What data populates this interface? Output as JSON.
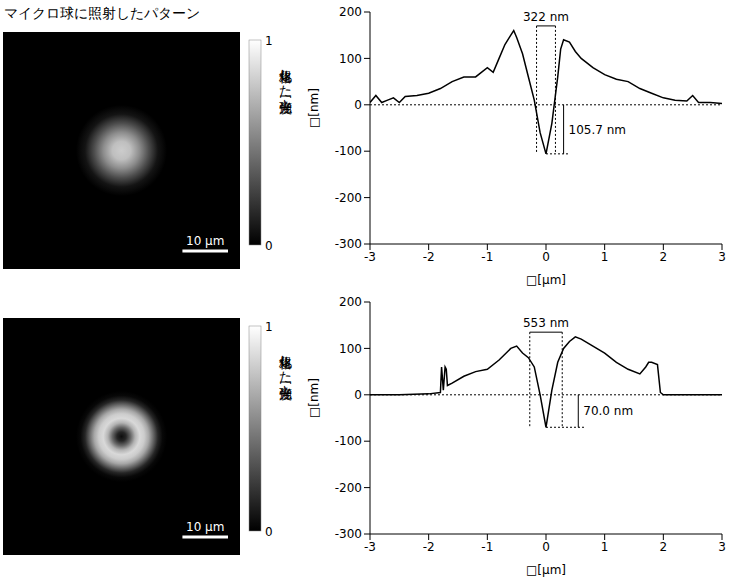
{
  "title": "マイクロ球に照射したパターン",
  "images": [
    {
      "field_um": 52,
      "scale_bar": {
        "length_um": 10,
        "label": "10 μm"
      },
      "radial_intensity": {
        "r_um": [
          0,
          2,
          4,
          6,
          8,
          10
        ],
        "values": [
          0.8,
          0.75,
          0.55,
          0.3,
          0.08,
          0
        ]
      },
      "colorbar": {
        "range": [
          0,
          1
        ],
        "ticks": [
          0,
          1
        ],
        "label": "規格化した光強度 [-]"
      }
    },
    {
      "field_um": 52,
      "scale_bar": {
        "length_um": 10,
        "label": "10 μm"
      },
      "radial_intensity": {
        "r_um": [
          0,
          1,
          2,
          3,
          4,
          5,
          6,
          7,
          8,
          9,
          10
        ],
        "values": [
          0.05,
          0.15,
          0.4,
          0.7,
          0.85,
          0.8,
          0.65,
          0.4,
          0.15,
          0.03,
          0
        ]
      },
      "colorbar": {
        "range": [
          0,
          1
        ],
        "ticks": [
          0,
          1
        ],
        "label": "規格化した光強度 [-]"
      }
    }
  ],
  "chart_data": [
    {
      "type": "line",
      "xlabel": "□[μm]",
      "ylabel": "□[nm]",
      "color": "#000000",
      "x": [
        -3,
        -2.9,
        -2.8,
        -2.7,
        -2.6,
        -2.5,
        -2.4,
        -2.2,
        -2,
        -1.8,
        -1.6,
        -1.4,
        -1.2,
        -1.0,
        -0.9,
        -0.8,
        -0.7,
        -0.6,
        -0.55,
        -0.5,
        -0.4,
        -0.3,
        -0.2,
        -0.1,
        0,
        0.1,
        0.2,
        0.25,
        0.3,
        0.4,
        0.5,
        0.6,
        0.8,
        1.0,
        1.2,
        1.4,
        1.6,
        1.8,
        2.0,
        2.2,
        2.4,
        2.5,
        2.6,
        2.8,
        3.0
      ],
      "values": [
        5,
        20,
        5,
        10,
        15,
        5,
        18,
        20,
        25,
        35,
        50,
        60,
        60,
        80,
        70,
        100,
        130,
        150,
        160,
        145,
        110,
        60,
        10,
        -60,
        -105.7,
        -40,
        60,
        120,
        140,
        135,
        115,
        100,
        80,
        65,
        55,
        50,
        35,
        25,
        15,
        10,
        8,
        20,
        5,
        5,
        3
      ],
      "xlim": [
        -3,
        3
      ],
      "xticks": [
        -3,
        -2,
        -1,
        0,
        1,
        2,
        3
      ],
      "ylim": [
        -300,
        200
      ],
      "yticks": [
        -300,
        -200,
        -100,
        0,
        100,
        200
      ],
      "hlines": [
        0
      ],
      "annotations": [
        {
          "text": "322 nm",
          "x": [
            -0.161,
            0.161
          ],
          "y": 170
        },
        {
          "text": "105.7 nm",
          "x": 0.3,
          "y": [
            -105.7,
            0
          ]
        }
      ]
    },
    {
      "type": "line",
      "xlabel": "□[μm]",
      "ylabel": "□[nm]",
      "color": "#000000",
      "x": [
        -3,
        -2.5,
        -2,
        -1.8,
        -1.78,
        -1.75,
        -1.72,
        -1.7,
        -1.68,
        -1.6,
        -1.4,
        -1.2,
        -1.0,
        -0.8,
        -0.6,
        -0.5,
        -0.4,
        -0.3,
        -0.2,
        -0.1,
        0,
        0.1,
        0.2,
        0.3,
        0.4,
        0.5,
        0.6,
        0.8,
        1.0,
        1.2,
        1.4,
        1.6,
        1.7,
        1.75,
        1.8,
        1.9,
        1.95,
        2.0,
        2.5,
        3.0
      ],
      "values": [
        0,
        0,
        2,
        5,
        60,
        10,
        60,
        55,
        20,
        25,
        40,
        50,
        55,
        75,
        100,
        105,
        90,
        80,
        60,
        0,
        -70,
        10,
        70,
        100,
        115,
        125,
        120,
        105,
        90,
        70,
        55,
        45,
        60,
        70,
        70,
        65,
        5,
        0,
        0,
        0
      ],
      "xlim": [
        -3,
        3
      ],
      "xticks": [
        -3,
        -2,
        -1,
        0,
        1,
        2,
        3
      ],
      "ylim": [
        -300,
        200
      ],
      "yticks": [
        -300,
        -200,
        -100,
        0,
        100,
        200
      ],
      "hlines": [
        0
      ],
      "annotations": [
        {
          "text": "553 nm",
          "x": [
            -0.2765,
            0.2765
          ],
          "y": 135
        },
        {
          "text": "70.0 nm",
          "x": 0.55,
          "y": [
            -70,
            0
          ]
        }
      ]
    }
  ]
}
